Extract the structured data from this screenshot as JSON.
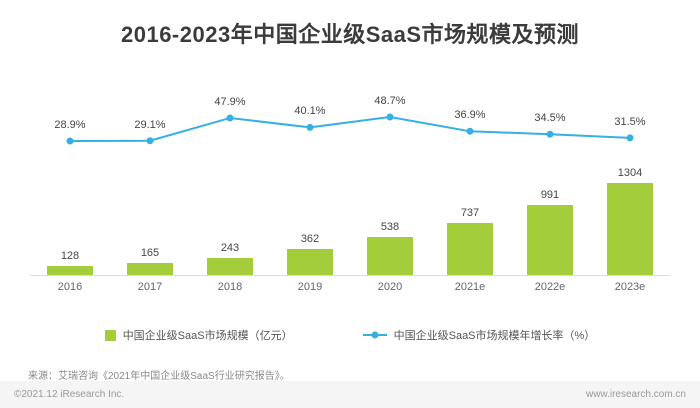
{
  "title": "2016-2023年中国企业级SaaS市场规模及预测",
  "chart_data": {
    "type": "bar+line",
    "categories": [
      "2016",
      "2017",
      "2018",
      "2019",
      "2020",
      "2021e",
      "2022e",
      "2023e"
    ],
    "series": [
      {
        "name": "中国企业级SaaS市场规模（亿元）",
        "type": "bar",
        "values": [
          128,
          165,
          243,
          362,
          538,
          737,
          991,
          1304
        ],
        "color": "#a3cd3a"
      },
      {
        "name": "中国企业级SaaS市场规模年增长率（%）",
        "type": "line",
        "values": [
          28.9,
          29.1,
          47.9,
          40.1,
          48.7,
          36.9,
          34.5,
          31.5
        ],
        "unit": "%",
        "color": "#36b0e3"
      }
    ],
    "legend_position": "bottom",
    "grid": false,
    "data_labels": true
  },
  "footer": {
    "source": "来源：艾瑞咨询《2021年中国企业级SaaS行业研究报告》。",
    "copyright": "©2021.12 iResearch Inc.",
    "website": "www.iresearch.com.cn"
  }
}
